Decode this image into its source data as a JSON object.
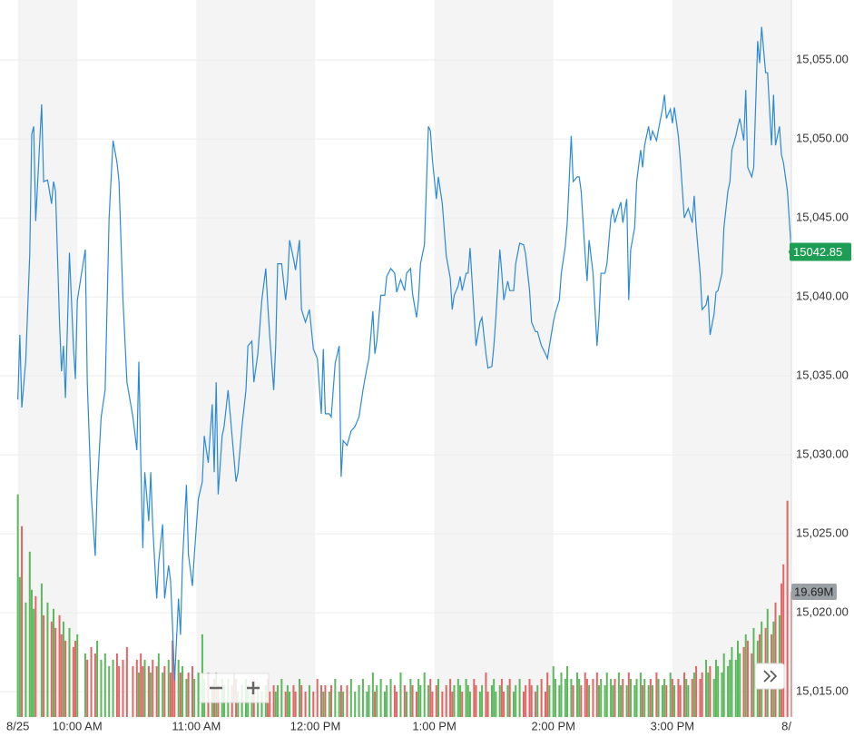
{
  "chart_data": {
    "type": "line",
    "x": [
      570,
      571,
      572,
      574,
      576,
      577,
      578,
      579,
      582,
      583,
      585,
      587,
      588,
      589,
      591,
      592,
      593,
      594,
      596,
      598,
      599,
      600,
      604,
      605,
      607,
      609,
      610,
      612,
      614,
      616,
      618,
      620,
      621,
      623,
      625,
      628,
      630,
      631,
      632,
      633,
      634,
      636,
      637,
      638,
      640,
      641,
      643,
      644,
      646,
      647,
      648,
      649,
      651,
      652,
      653,
      655,
      656,
      658,
      659,
      661,
      663,
      664,
      666,
      668,
      669,
      670,
      671,
      673,
      674,
      676,
      678,
      680,
      681,
      683,
      685,
      686,
      688,
      689,
      691,
      693,
      695,
      696,
      697,
      699,
      700,
      701,
      703,
      705,
      706,
      707,
      709,
      710,
      712,
      713,
      715,
      717,
      719,
      721,
      723,
      724,
      725,
      727,
      728,
      730,
      732,
      733,
      734,
      736,
      738,
      740,
      742,
      744,
      746,
      747,
      749,
      750,
      751,
      753,
      755,
      756,
      758,
      760,
      761,
      763,
      765,
      766,
      768,
      769,
      771,
      772,
      773,
      775,
      777,
      778,
      779,
      781,
      782,
      784,
      786,
      788,
      789,
      790,
      792,
      793,
      794,
      796,
      797,
      798,
      800,
      801,
      803,
      804,
      806,
      807,
      809,
      810,
      811,
      813,
      814,
      815,
      817,
      818,
      820,
      821,
      823,
      825,
      826,
      828,
      829,
      831,
      832,
      834,
      836,
      837,
      838,
      840,
      841,
      843,
      844,
      846,
      847,
      849,
      850,
      852,
      853,
      854,
      856,
      857,
      858,
      860,
      862,
      863,
      864,
      866,
      867,
      869,
      870,
      871,
      873,
      874,
      875,
      877,
      878,
      879,
      881,
      882,
      884,
      885,
      886,
      888,
      889,
      890,
      892,
      893,
      895,
      896,
      897,
      899,
      900,
      901,
      903,
      904,
      906,
      907,
      908,
      910,
      911,
      912,
      914,
      915,
      917,
      918,
      919,
      921,
      922,
      923,
      925,
      926,
      928,
      929,
      930,
      932,
      933,
      934,
      936,
      937,
      938,
      940,
      941,
      943,
      944,
      945,
      947,
      948,
      950,
      951,
      952,
      954,
      955,
      956,
      958,
      960
    ],
    "series": [
      {
        "color": "#2b8ad8",
        "values": [
          15033.5,
          15037.6,
          15033.0,
          15036.0,
          15042.7,
          15050.3,
          15050.8,
          15044.8,
          15052.2,
          15047.3,
          15047.4,
          15045.9,
          15047.3,
          15046.7,
          15038.4,
          15035.3,
          15036.9,
          15033.6,
          15042.8,
          15036.9,
          15034.8,
          15039.8,
          15043.0,
          15034.6,
          15027.5,
          15023.6,
          15027.8,
          15032.4,
          15034.1,
          15045.0,
          15049.9,
          15048.5,
          15047.3,
          15039.8,
          15034.6,
          15032.4,
          15030.3,
          15035.9,
          15029.5,
          15024.1,
          15028.9,
          15025.8,
          15028.9,
          15025.5,
          15020.9,
          15023.2,
          15025.6,
          15020.9,
          15023.0,
          15022.0,
          15019.1,
          15015.7,
          15020.9,
          15018.6,
          15023.2,
          15028.1,
          15023.7,
          15021.7,
          15023.7,
          15027.2,
          15028.3,
          15031.2,
          15029.5,
          15033.2,
          15028.9,
          15034.6,
          15027.5,
          15031.2,
          15031.8,
          15034.1,
          15031.2,
          15028.3,
          15028.9,
          15031.8,
          15034.1,
          15036.9,
          15037.2,
          15034.6,
          15036.4,
          15039.8,
          15041.8,
          15039.5,
          15037.5,
          15034.1,
          15036.9,
          15042.1,
          15042.1,
          15039.8,
          15041.0,
          15043.6,
          15042.4,
          15041.7,
          15043.6,
          15039.2,
          15038.4,
          15039.2,
          15036.7,
          15036.1,
          15032.6,
          15036.7,
          15032.6,
          15032.6,
          15032.4,
          15035.8,
          15036.9,
          15028.6,
          15030.9,
          15030.6,
          15031.5,
          15031.8,
          15032.4,
          15034.1,
          15035.5,
          15036.1,
          15039.1,
          15036.4,
          15037.2,
          15040.1,
          15040.1,
          15041.3,
          15041.8,
          15041.5,
          15040.3,
          15041.1,
          15040.4,
          15041.5,
          15041.8,
          15040.2,
          15038.7,
          15039.8,
          15042.1,
          15043.3,
          15050.8,
          15050.5,
          15048.7,
          15046.2,
          15047.6,
          15045.9,
          15042.6,
          15041.2,
          15039.2,
          15040.1,
          15040.7,
          15041.3,
          15040.4,
          15041.5,
          15041.5,
          15043.1,
          15039.0,
          15036.9,
          15038.4,
          15038.7,
          15036.4,
          15035.5,
          15035.6,
          15036.9,
          15038.7,
          15043.0,
          15041.5,
          15039.8,
          15041.0,
          15040.4,
          15040.4,
          15042.1,
          15043.4,
          15043.3,
          15042.7,
          15040.4,
          15038.4,
          15037.8,
          15037.8,
          15036.9,
          15036.4,
          15036.1,
          15036.9,
          15038.4,
          15039.0,
          15039.8,
          15041.5,
          15043.2,
          15044.7,
          15050.2,
          15047.3,
          15047.6,
          15047.6,
          15046.7,
          15042.7,
          15041.0,
          15043.6,
          15041.5,
          15036.9,
          15038.7,
          15041.5,
          15041.5,
          15042.1,
          15045.0,
          15045.6,
          15044.7,
          15045.6,
          15046.0,
          15044.7,
          15046.2,
          15039.8,
          15043.0,
          15044.4,
          15047.3,
          15049.3,
          15048.2,
          15049.6,
          15050.8,
          15049.9,
          15050.5,
          15049.9,
          15050.6,
          15051.9,
          15052.8,
          15051.3,
          15051.9,
          15051.0,
          15052.0,
          15050.2,
          15048.7,
          15045.0,
          15045.3,
          15045.6,
          15044.7,
          15046.4,
          15044.4,
          15041.5,
          15039.2,
          15039.5,
          15040.1,
          15037.6,
          15038.9,
          15040.3,
          15040.4,
          15041.5,
          15044.4,
          15046.7,
          15047.3,
          15049.3,
          15050.2,
          15050.8,
          15051.3,
          15049.9,
          15053.1,
          15048.2,
          15047.6,
          15048.2,
          15056.2,
          15054.8,
          15057.1,
          15054.2,
          15054.2,
          15049.6,
          15052.8,
          15049.6,
          15050.8,
          15049.0,
          15048.5,
          15046.7,
          15042.85
        ]
      },
      {
        "type": "bar",
        "axis": "y2",
        "up_color": "#5cb85c",
        "down_color": "#e06666",
        "values": [
          35,
          22,
          30,
          18,
          26,
          20,
          17,
          19,
          21,
          16,
          18,
          15,
          17,
          14,
          16,
          13,
          15,
          12,
          14,
          11,
          12,
          13,
          10,
          9,
          11,
          10,
          12,
          9,
          10,
          8,
          9,
          10,
          8,
          9,
          11,
          8,
          9,
          7,
          10,
          8,
          9,
          8,
          7,
          9,
          8,
          10,
          7,
          8,
          9,
          7,
          12,
          8,
          9,
          7,
          8,
          6,
          7,
          8,
          6,
          7,
          13,
          6,
          7,
          5,
          6,
          7,
          5,
          6,
          5,
          6,
          5,
          6,
          4,
          5,
          6,
          5,
          4,
          6,
          5,
          4,
          5,
          6,
          4,
          5,
          4,
          5,
          6,
          4,
          5,
          4,
          5,
          4,
          6,
          5,
          4,
          5,
          4,
          6,
          5,
          4,
          5,
          4,
          5,
          6,
          4,
          5,
          4,
          5,
          6,
          4,
          5,
          6,
          4,
          5,
          7,
          4,
          5,
          6,
          4,
          5,
          6,
          5,
          4,
          7,
          5,
          4,
          6,
          5,
          4,
          6,
          5,
          7,
          5,
          6,
          4,
          5,
          6,
          4,
          5,
          6,
          4,
          5,
          6,
          5,
          4,
          6,
          5,
          4,
          6,
          5,
          4,
          5,
          7,
          4,
          5,
          6,
          4,
          5,
          6,
          4,
          5,
          6,
          4,
          5,
          6,
          4,
          5,
          6,
          5,
          4,
          5,
          6,
          4,
          7,
          5,
          8,
          6,
          5,
          7,
          6,
          8,
          6,
          5,
          7,
          6,
          5,
          7,
          6,
          5,
          6,
          7,
          5,
          6,
          5,
          7,
          6,
          5,
          6,
          7,
          5,
          6,
          5,
          7,
          6,
          5,
          6,
          7,
          5,
          6,
          5,
          6,
          5,
          7,
          6,
          5,
          6,
          5,
          7,
          6,
          5,
          6,
          5,
          7,
          6,
          5,
          6,
          7,
          8,
          6,
          7,
          9,
          7,
          8,
          6,
          9,
          8,
          7,
          10,
          8,
          9,
          11,
          9,
          12,
          10,
          11,
          13,
          12,
          10,
          14,
          12,
          13,
          15,
          14,
          17,
          13,
          15,
          18,
          16,
          21,
          24,
          34,
          19.69
        ]
      }
    ],
    "xlim": [
      561,
      960
    ],
    "xticks": [
      {
        "value": 570,
        "label": "8/25"
      },
      {
        "value": 600,
        "label": "10:00 AM"
      },
      {
        "value": 660,
        "label": "11:00 AM"
      },
      {
        "value": 720,
        "label": "12:00 PM"
      },
      {
        "value": 780,
        "label": "1:00 PM"
      },
      {
        "value": 840,
        "label": "2:00 PM"
      },
      {
        "value": 900,
        "label": "3:00 PM"
      },
      {
        "value": 960,
        "label": "8/"
      }
    ],
    "ylim": [
      15013.4,
      15058.8
    ],
    "yticks": [
      {
        "value": 15015,
        "label": "15,015.00"
      },
      {
        "value": 15020,
        "label": "15,020.00"
      },
      {
        "value": 15025,
        "label": "15,025.00"
      },
      {
        "value": 15030,
        "label": "15,030.00"
      },
      {
        "value": 15035,
        "label": "15,035.00"
      },
      {
        "value": 15040,
        "label": "15,040.00"
      },
      {
        "value": 15045,
        "label": "15,045.00"
      },
      {
        "value": 15050,
        "label": "15,050.00"
      },
      {
        "value": 15055,
        "label": "15,055.00"
      }
    ],
    "y2lim": [
      0,
      112.7
    ],
    "y2ticks": [
      {
        "value": 19.69,
        "label": "19.69M"
      }
    ],
    "grid": true,
    "band_color": "#f4f4f4",
    "last_badge_color": "#1e9e55",
    "volume_badge_color": "#9aa0a6"
  }
}
